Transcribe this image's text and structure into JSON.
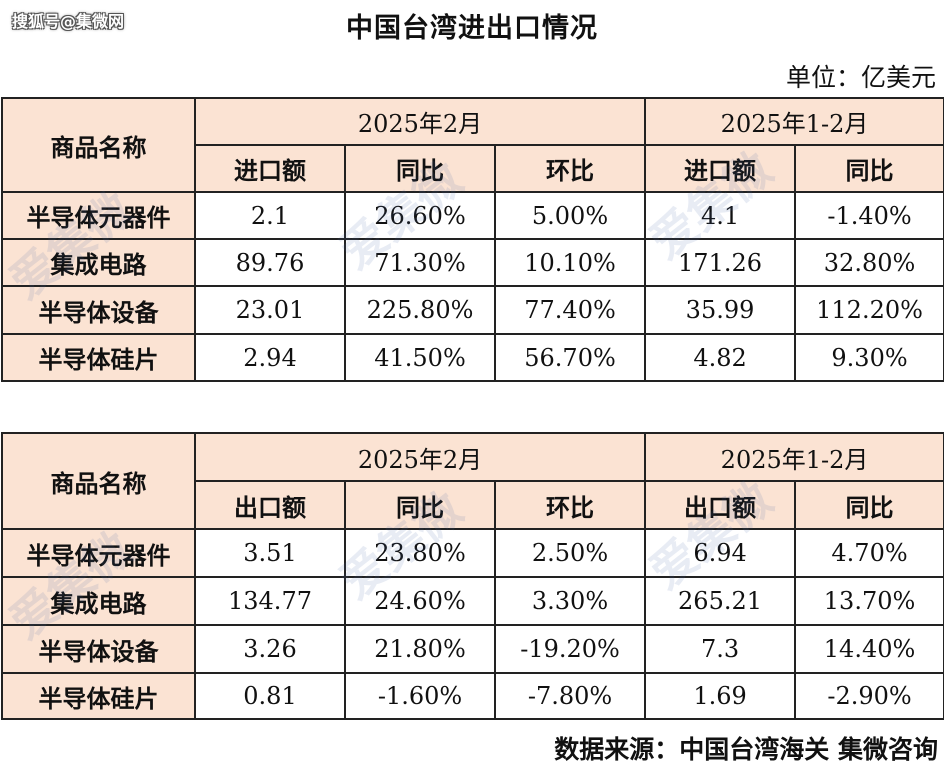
{
  "source_watermark": "搜狐号@集微网",
  "title": "中国台湾进出口情况",
  "unit": "单位：亿美元",
  "tables": [
    {
      "name_header": "商品名称",
      "period_a": "2025年2月",
      "period_b": "2025年1-2月",
      "cols": [
        "进口额",
        "同比",
        "环比",
        "进口额",
        "同比"
      ],
      "rows": [
        {
          "name": "半导体元器件",
          "v": [
            "2.1",
            "26.60%",
            "5.00%",
            "4.1",
            "-1.40%"
          ]
        },
        {
          "name": "集成电路",
          "v": [
            "89.76",
            "71.30%",
            "10.10%",
            "171.26",
            "32.80%"
          ]
        },
        {
          "name": "半导体设备",
          "v": [
            "23.01",
            "225.80%",
            "77.40%",
            "35.99",
            "112.20%"
          ]
        },
        {
          "name": "半导体硅片",
          "v": [
            "2.94",
            "41.50%",
            "56.70%",
            "4.82",
            "9.30%"
          ]
        }
      ]
    },
    {
      "name_header": "商品名称",
      "period_a": "2025年2月",
      "period_b": "2025年1-2月",
      "cols": [
        "出口额",
        "同比",
        "环比",
        "出口额",
        "同比"
      ],
      "rows": [
        {
          "name": "半导体元器件",
          "v": [
            "3.51",
            "23.80%",
            "2.50%",
            "6.94",
            "4.70%"
          ]
        },
        {
          "name": "集成电路",
          "v": [
            "134.77",
            "24.60%",
            "3.30%",
            "265.21",
            "13.70%"
          ]
        },
        {
          "name": "半导体设备",
          "v": [
            "3.26",
            "21.80%",
            "-19.20%",
            "7.3",
            "14.40%"
          ]
        },
        {
          "name": "半导体硅片",
          "v": [
            "0.81",
            "-1.60%",
            "-7.80%",
            "1.69",
            "-2.90%"
          ]
        }
      ]
    }
  ],
  "source": "数据来源：中国台湾海关 集微咨询",
  "bg_watermark": "爱集微"
}
